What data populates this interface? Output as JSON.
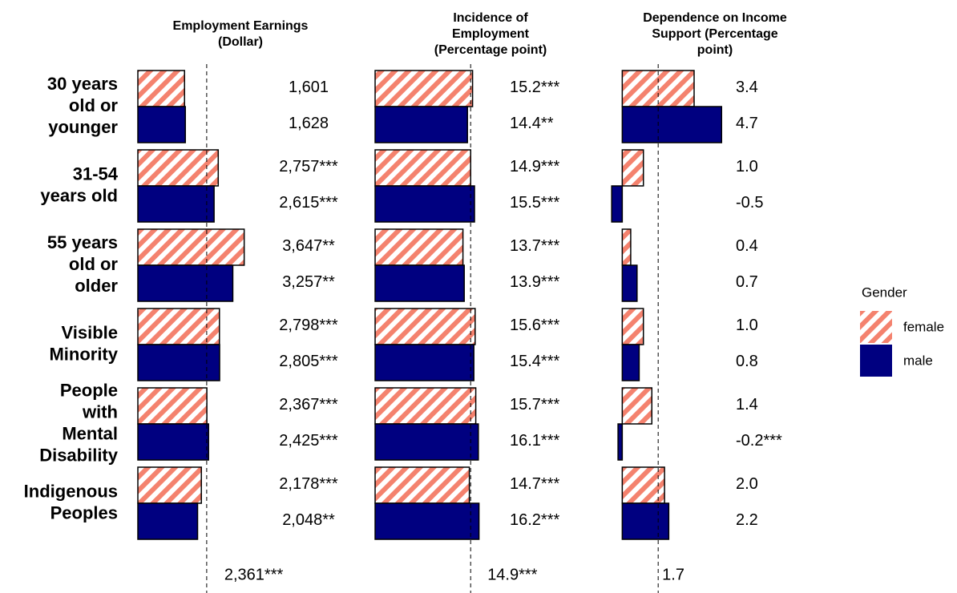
{
  "chart_data": {
    "type": "bar",
    "orientation": "horizontal",
    "categories": [
      "30 years\nold or\nyounger",
      "31-54\nyears old",
      "55 years\nold or\nolder",
      "Visible\nMinority",
      "People\nwith\nMental\nDisability",
      "Indigenous\nPeoples"
    ],
    "legend_title": "Gender",
    "legend_position": "right",
    "series": [
      {
        "name": "female",
        "color": "#f4826e",
        "pattern": "hatch"
      },
      {
        "name": "male",
        "color": "#000080",
        "pattern": "solid"
      }
    ],
    "panels": [
      {
        "title": "Employment Earnings\n(Dollar)",
        "xlim": [
          0,
          8000
        ],
        "values": [
          [
            1601,
            2757,
            3647,
            2798,
            2367,
            2178
          ],
          [
            1628,
            2615,
            3257,
            2805,
            2425,
            2048
          ]
        ],
        "value_labels": [
          [
            "1,601",
            "2,757***",
            "3,647**",
            "2,798***",
            "2,367***",
            "2,178***"
          ],
          [
            "1,628",
            "2,615***",
            "3,257**",
            "2,805***",
            "2,425***",
            "2,048**"
          ]
        ],
        "reference": 2361,
        "reference_label": "2,361***"
      },
      {
        "title": "Incidence of\nEmployment\n(Percentage point)",
        "xlim": [
          0,
          36
        ],
        "values": [
          [
            15.2,
            14.9,
            13.7,
            15.6,
            15.7,
            14.7
          ],
          [
            14.4,
            15.5,
            13.9,
            15.4,
            16.1,
            16.2
          ]
        ],
        "value_labels": [
          [
            "15.2***",
            "14.9***",
            "13.7***",
            "15.6***",
            "15.7***",
            "14.7***"
          ],
          [
            "14.4**",
            "15.5***",
            "13.9***",
            "15.4***",
            "16.1***",
            "16.2***"
          ]
        ],
        "reference": 14.9,
        "reference_label": "14.9***"
      },
      {
        "title": "Dependence on Income\nSupport (Percentage\npoint)",
        "xlim": [
          -1,
          10
        ],
        "values": [
          [
            3.4,
            1.0,
            0.4,
            1.0,
            1.4,
            2.0
          ],
          [
            4.7,
            -0.5,
            0.7,
            0.8,
            -0.2,
            2.2
          ]
        ],
        "value_labels": [
          [
            "3.4",
            "1.0",
            "0.4",
            "1.0",
            "1.4",
            "2.0"
          ],
          [
            "4.7",
            "-0.5",
            "0.7",
            "0.8",
            "-0.2***",
            "2.2"
          ]
        ],
        "reference": 1.7,
        "reference_label": "1.7"
      }
    ]
  }
}
